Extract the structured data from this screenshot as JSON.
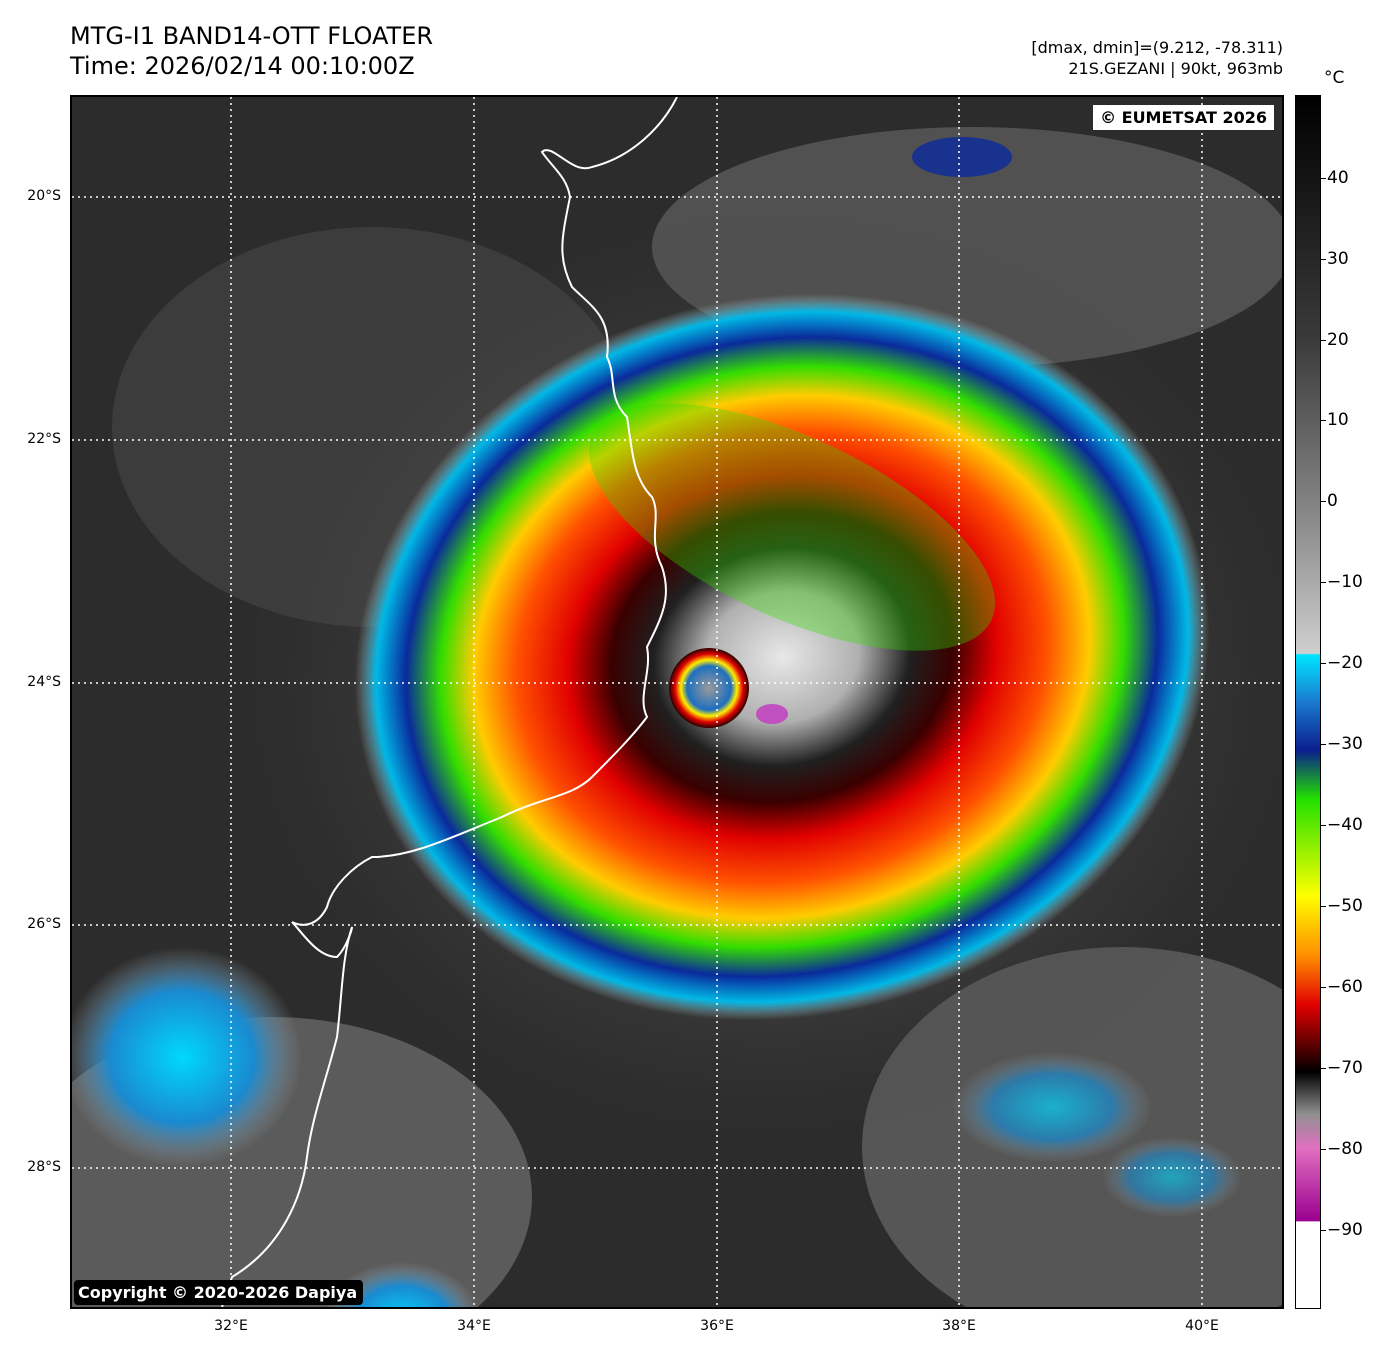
{
  "header": {
    "title_line1": "MTG-I1 BAND14-OTT FLOATER",
    "title_line2": "Time: 2026/02/14 00:10:00Z",
    "stats_line1": "[dmax, dmin]=(9.212, -78.311)",
    "stats_line2": "21S.GEZANI | 90kt, 963mb"
  },
  "map": {
    "eumetsat_badge": "© EUMETSAT 2026",
    "copyright_badge": "Copyright © 2020-2026 Dapiya",
    "lat_labels": [
      "20°S",
      "22°S",
      "24°S",
      "26°S",
      "28°S"
    ],
    "lon_labels": [
      "32°E",
      "34°E",
      "36°E",
      "38°E",
      "40°E"
    ],
    "grid": "dotted",
    "coastline_color": "#ffffff"
  },
  "colorbar": {
    "unit": "°C",
    "ticks": [
      "40",
      "30",
      "20",
      "10",
      "0",
      "−10",
      "−20",
      "−30",
      "−40",
      "−50",
      "−60",
      "−70",
      "−80",
      "−90"
    ],
    "colors": {
      "warm": "#000000",
      "mid_gray": "#808080",
      "cyan": "#00e5ff",
      "blue": "#0a1e8c",
      "green": "#22e000",
      "yellow": "#ffff00",
      "orange": "#ff8c00",
      "red": "#e00000",
      "dark_red": "#400000",
      "magenta": "#9a0090",
      "white": "#ffffff"
    }
  }
}
